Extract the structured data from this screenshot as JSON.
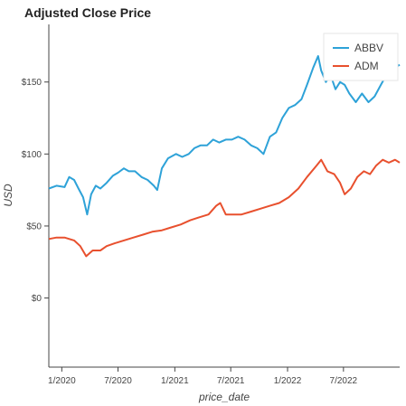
{
  "chart_data": {
    "type": "line",
    "title": "Adjusted Close Price",
    "xlabel": "price_date",
    "ylabel": "USD",
    "x_range": [
      "2019-11-20",
      "2022-12-30"
    ],
    "ylim": [
      -48,
      190
    ],
    "x_ticks": [
      {
        "date": "2020-01-01",
        "label": "1/2020"
      },
      {
        "date": "2020-07-01",
        "label": "7/2020"
      },
      {
        "date": "2021-01-01",
        "label": "1/2021"
      },
      {
        "date": "2021-07-01",
        "label": "7/2021"
      },
      {
        "date": "2022-01-01",
        "label": "1/2022"
      },
      {
        "date": "2022-07-01",
        "label": "7/2022"
      }
    ],
    "y_ticks": [
      {
        "value": 0,
        "label": "$0"
      },
      {
        "value": 50,
        "label": "$50"
      },
      {
        "value": 100,
        "label": "$100"
      },
      {
        "value": 150,
        "label": "$150"
      }
    ],
    "grid": false,
    "legend_position": "top-right",
    "series": [
      {
        "name": "ABBV",
        "color": "#2ea2d8",
        "points": [
          [
            "2019-11-20",
            76
          ],
          [
            "2019-12-15",
            78
          ],
          [
            "2020-01-10",
            77
          ],
          [
            "2020-01-25",
            84
          ],
          [
            "2020-02-10",
            82
          ],
          [
            "2020-02-24",
            76
          ],
          [
            "2020-03-10",
            70
          ],
          [
            "2020-03-23",
            58
          ],
          [
            "2020-04-05",
            72
          ],
          [
            "2020-04-20",
            78
          ],
          [
            "2020-05-05",
            76
          ],
          [
            "2020-05-25",
            80
          ],
          [
            "2020-06-15",
            85
          ],
          [
            "2020-07-01",
            87
          ],
          [
            "2020-07-20",
            90
          ],
          [
            "2020-08-05",
            88
          ],
          [
            "2020-08-25",
            88
          ],
          [
            "2020-09-15",
            84
          ],
          [
            "2020-10-05",
            82
          ],
          [
            "2020-10-25",
            78
          ],
          [
            "2020-11-05",
            75
          ],
          [
            "2020-11-20",
            90
          ],
          [
            "2020-12-10",
            97
          ],
          [
            "2021-01-05",
            100
          ],
          [
            "2021-01-25",
            98
          ],
          [
            "2021-02-15",
            100
          ],
          [
            "2021-03-05",
            104
          ],
          [
            "2021-03-25",
            106
          ],
          [
            "2021-04-15",
            106
          ],
          [
            "2021-05-05",
            110
          ],
          [
            "2021-05-25",
            108
          ],
          [
            "2021-06-15",
            110
          ],
          [
            "2021-07-05",
            110
          ],
          [
            "2021-07-25",
            112
          ],
          [
            "2021-08-15",
            110
          ],
          [
            "2021-09-05",
            106
          ],
          [
            "2021-09-25",
            104
          ],
          [
            "2021-10-15",
            100
          ],
          [
            "2021-11-05",
            112
          ],
          [
            "2021-11-25",
            115
          ],
          [
            "2021-12-15",
            125
          ],
          [
            "2022-01-05",
            132
          ],
          [
            "2022-01-25",
            134
          ],
          [
            "2022-02-15",
            138
          ],
          [
            "2022-03-05",
            148
          ],
          [
            "2022-03-25",
            160
          ],
          [
            "2022-04-10",
            168
          ],
          [
            "2022-04-20",
            158
          ],
          [
            "2022-05-05",
            150
          ],
          [
            "2022-05-20",
            155
          ],
          [
            "2022-06-05",
            145
          ],
          [
            "2022-06-20",
            150
          ],
          [
            "2022-07-05",
            148
          ],
          [
            "2022-07-20",
            142
          ],
          [
            "2022-08-10",
            136
          ],
          [
            "2022-08-30",
            142
          ],
          [
            "2022-09-20",
            136
          ],
          [
            "2022-10-10",
            140
          ],
          [
            "2022-10-30",
            148
          ],
          [
            "2022-11-20",
            156
          ],
          [
            "2022-12-15",
            160
          ],
          [
            "2022-12-30",
            162
          ]
        ]
      },
      {
        "name": "ADM",
        "color": "#e8502e",
        "points": [
          [
            "2019-11-20",
            41
          ],
          [
            "2019-12-15",
            42
          ],
          [
            "2020-01-10",
            42
          ],
          [
            "2020-02-10",
            40
          ],
          [
            "2020-03-01",
            36
          ],
          [
            "2020-03-20",
            29
          ],
          [
            "2020-04-10",
            33
          ],
          [
            "2020-05-05",
            33
          ],
          [
            "2020-05-25",
            36
          ],
          [
            "2020-06-20",
            38
          ],
          [
            "2020-07-20",
            40
          ],
          [
            "2020-08-20",
            42
          ],
          [
            "2020-09-20",
            44
          ],
          [
            "2020-10-20",
            46
          ],
          [
            "2020-11-20",
            47
          ],
          [
            "2020-12-20",
            49
          ],
          [
            "2021-01-20",
            51
          ],
          [
            "2021-02-20",
            54
          ],
          [
            "2021-03-20",
            56
          ],
          [
            "2021-04-20",
            58
          ],
          [
            "2021-05-15",
            64
          ],
          [
            "2021-05-28",
            66
          ],
          [
            "2021-06-15",
            58
          ],
          [
            "2021-07-05",
            58
          ],
          [
            "2021-08-05",
            58
          ],
          [
            "2021-09-05",
            60
          ],
          [
            "2021-10-05",
            62
          ],
          [
            "2021-11-05",
            64
          ],
          [
            "2021-12-05",
            66
          ],
          [
            "2022-01-05",
            70
          ],
          [
            "2022-02-05",
            76
          ],
          [
            "2022-03-05",
            84
          ],
          [
            "2022-04-05",
            92
          ],
          [
            "2022-04-20",
            96
          ],
          [
            "2022-05-10",
            88
          ],
          [
            "2022-06-01",
            86
          ],
          [
            "2022-06-20",
            80
          ],
          [
            "2022-07-05",
            72
          ],
          [
            "2022-07-25",
            76
          ],
          [
            "2022-08-15",
            84
          ],
          [
            "2022-09-05",
            88
          ],
          [
            "2022-09-25",
            86
          ],
          [
            "2022-10-15",
            92
          ],
          [
            "2022-11-05",
            96
          ],
          [
            "2022-11-25",
            94
          ],
          [
            "2022-12-15",
            96
          ],
          [
            "2022-12-30",
            94
          ]
        ]
      }
    ]
  }
}
